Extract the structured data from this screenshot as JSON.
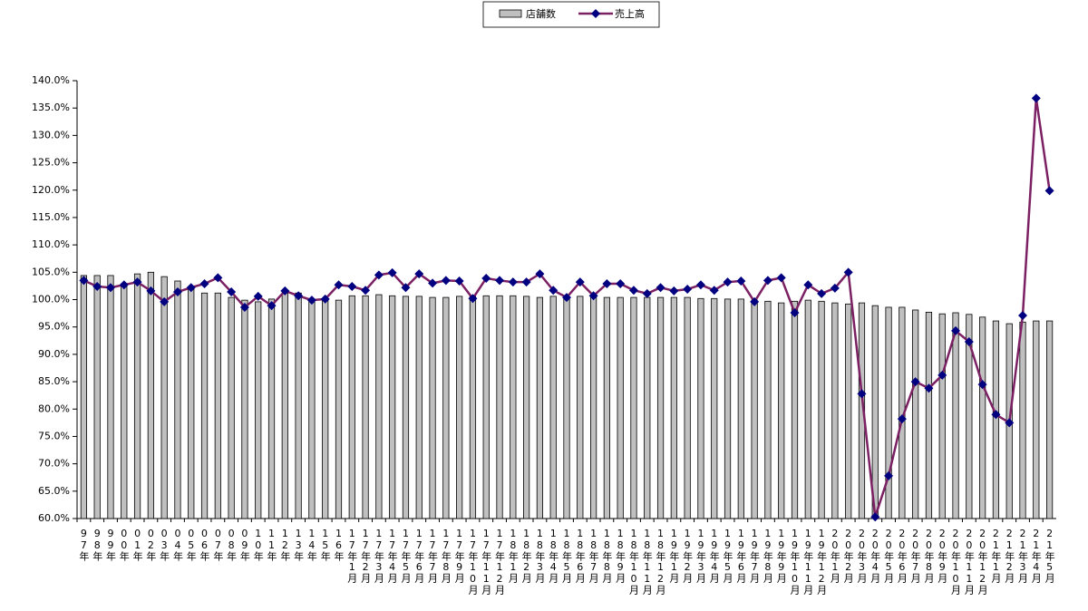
{
  "chart_data": {
    "type": "bar",
    "categories": [
      "97年",
      "98年",
      "99年",
      "00年",
      "01年",
      "02年",
      "03年",
      "04年",
      "05年",
      "06年",
      "07年",
      "08年",
      "09年",
      "10年",
      "11年",
      "12年",
      "13年",
      "14年",
      "15年",
      "16年",
      "17年1月",
      "17年2月",
      "17年3月",
      "17年4月",
      "17年5月",
      "17年6月",
      "17年7月",
      "17年8月",
      "17年9月",
      "17年10月",
      "17年11月",
      "17年12月",
      "18年1月",
      "18年2月",
      "18年3月",
      "18年4月",
      "18年5月",
      "18年6月",
      "18年7月",
      "18年8月",
      "18年9月",
      "18年10月",
      "18年11月",
      "18年12月",
      "19年1月",
      "19年2月",
      "19年3月",
      "19年4月",
      "19年5月",
      "19年6月",
      "19年7月",
      "19年8月",
      "19年9月",
      "19年10月",
      "19年11月",
      "19年12月",
      "20年1月",
      "20年2月",
      "20年3月",
      "20年4月",
      "20年5月",
      "20年6月",
      "20年7月",
      "20年8月",
      "20年9月",
      "20年10月",
      "20年11月",
      "20年12月",
      "21年1月",
      "21年2月",
      "21年3月",
      "21年4月",
      "21年5月"
    ],
    "series": [
      {
        "name": "店舗数",
        "type": "bar",
        "color": "#c0c0c0",
        "values": [
          104.4,
          104.4,
          104.4,
          102.9,
          104.7,
          105.0,
          104.2,
          103.4,
          102.4,
          101.2,
          101.2,
          100.4,
          99.9,
          99.6,
          100.1,
          101.2,
          101.2,
          100.1,
          100.2,
          99.9,
          100.7,
          100.7,
          100.9,
          100.7,
          100.6,
          100.6,
          100.4,
          100.4,
          100.6,
          100.6,
          100.7,
          100.7,
          100.7,
          100.6,
          100.4,
          100.6,
          100.4,
          100.6,
          100.6,
          100.4,
          100.4,
          100.4,
          100.4,
          100.4,
          100.4,
          100.4,
          100.2,
          100.2,
          100.1,
          100.1,
          99.9,
          99.7,
          99.4,
          99.7,
          99.9,
          99.7,
          99.4,
          99.2,
          99.4,
          98.9,
          98.6,
          98.6,
          98.1,
          97.7,
          97.4,
          97.6,
          97.3,
          96.8,
          96.1,
          95.6,
          95.9,
          96.1,
          96.1
        ]
      },
      {
        "name": "売上高",
        "type": "line",
        "color": "#7b2063",
        "marker_color": "#000080",
        "values": [
          103.5,
          102.4,
          102.2,
          102.7,
          103.2,
          101.6,
          99.6,
          101.4,
          102.2,
          102.9,
          104.0,
          101.4,
          98.6,
          100.6,
          98.9,
          101.6,
          100.7,
          99.9,
          100.1,
          102.7,
          102.4,
          101.7,
          104.5,
          104.9,
          102.2,
          104.7,
          103.0,
          103.5,
          103.4,
          100.2,
          103.9,
          103.5,
          103.2,
          103.2,
          104.7,
          101.7,
          100.4,
          103.2,
          100.7,
          102.9,
          102.9,
          101.7,
          101.1,
          102.2,
          101.6,
          101.9,
          102.7,
          101.7,
          103.2,
          103.4,
          99.6,
          103.5,
          104.0,
          97.6,
          102.7,
          101.1,
          102.1,
          105.0,
          82.8,
          60.3,
          67.8,
          78.2,
          85.0,
          83.8,
          86.2,
          94.3,
          92.3,
          84.5,
          79.0,
          77.5,
          97.1,
          136.8,
          119.9
        ]
      }
    ],
    "ylim": [
      60,
      140
    ],
    "yticks": [
      {
        "value": 60,
        "label": "60.0%"
      },
      {
        "value": 65,
        "label": "65.0%"
      },
      {
        "value": 70,
        "label": "70.0%"
      },
      {
        "value": 75,
        "label": "75.0%"
      },
      {
        "value": 80,
        "label": "80.0%"
      },
      {
        "value": 85,
        "label": "85.0%"
      },
      {
        "value": 90,
        "label": "90.0%"
      },
      {
        "value": 95,
        "label": "95.0%"
      },
      {
        "value": 100,
        "label": "100.0%"
      },
      {
        "value": 105,
        "label": "105.0%"
      },
      {
        "value": 110,
        "label": "110.0%"
      },
      {
        "value": 115,
        "label": "115.0%"
      },
      {
        "value": 120,
        "label": "120.0%"
      },
      {
        "value": 125,
        "label": "125.0%"
      },
      {
        "value": 130,
        "label": "130.0%"
      },
      {
        "value": 135,
        "label": "135.0%"
      },
      {
        "value": 140,
        "label": "140.0%"
      }
    ],
    "grid": false,
    "legend": "top"
  }
}
